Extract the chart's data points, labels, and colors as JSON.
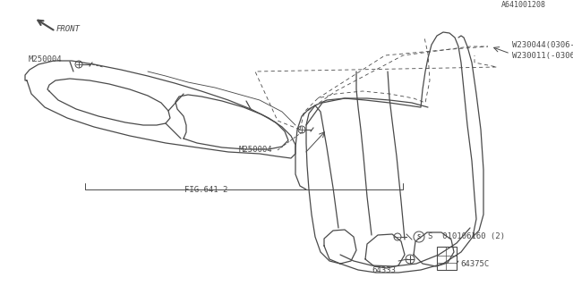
{
  "bg_color": "#ffffff",
  "line_color": "#4a4a4a",
  "fig_width": 6.4,
  "fig_height": 3.2,
  "dpi": 100,
  "labels": {
    "fig641_2": "FIG.641-2",
    "m250004_mid": "M250004",
    "m250004_bot": "M250004",
    "l64333": "64333",
    "l64375C": "64375C",
    "l010106160": "S  010106160 (2)",
    "w230011": "W230011(-0306)",
    "w230044": "W230044(0306-)",
    "front": "FRONT",
    "part_num": "A641001208"
  }
}
